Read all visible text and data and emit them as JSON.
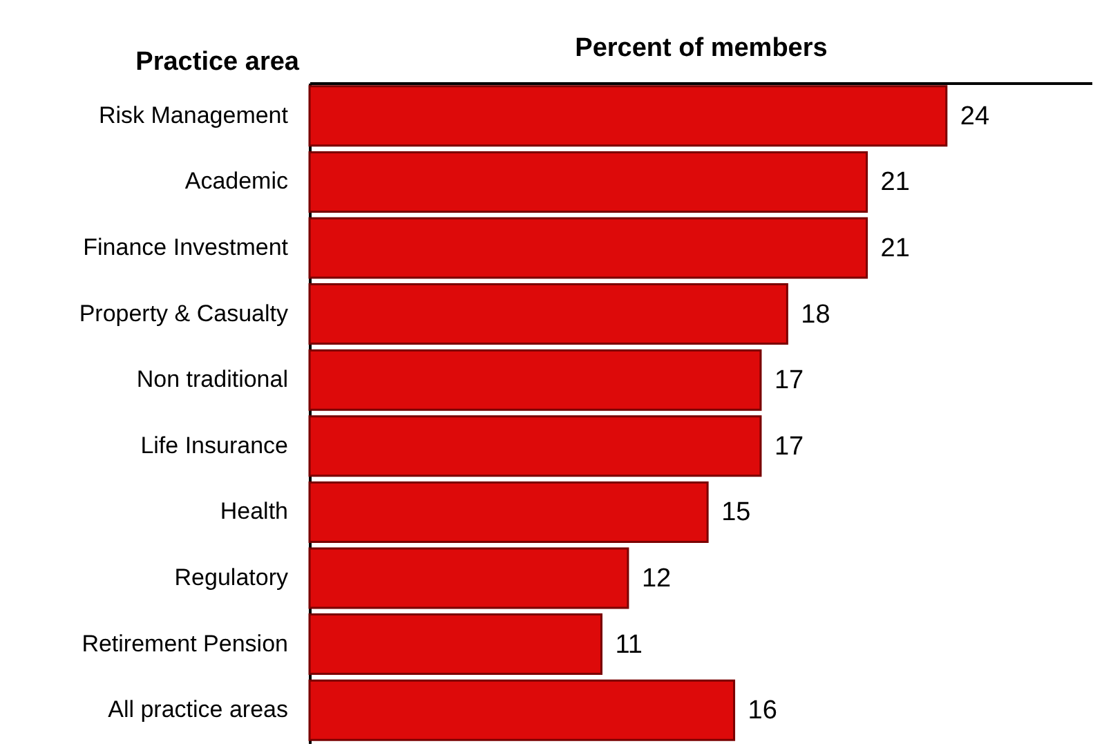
{
  "chart_data": {
    "type": "bar",
    "orientation": "horizontal",
    "xlabel": "Percent of members",
    "ylabel": "Practice area",
    "categories": [
      "Risk Management",
      "Academic",
      "Finance Investment",
      "Property & Casualty",
      "Non traditional",
      "Life Insurance",
      "Health",
      "Regulatory",
      "Retirement Pension",
      "All practice areas"
    ],
    "values": [
      24,
      21,
      21,
      18,
      17,
      17,
      15,
      12,
      11,
      16
    ],
    "color": "#dd0a0a",
    "data_labels": true
  }
}
